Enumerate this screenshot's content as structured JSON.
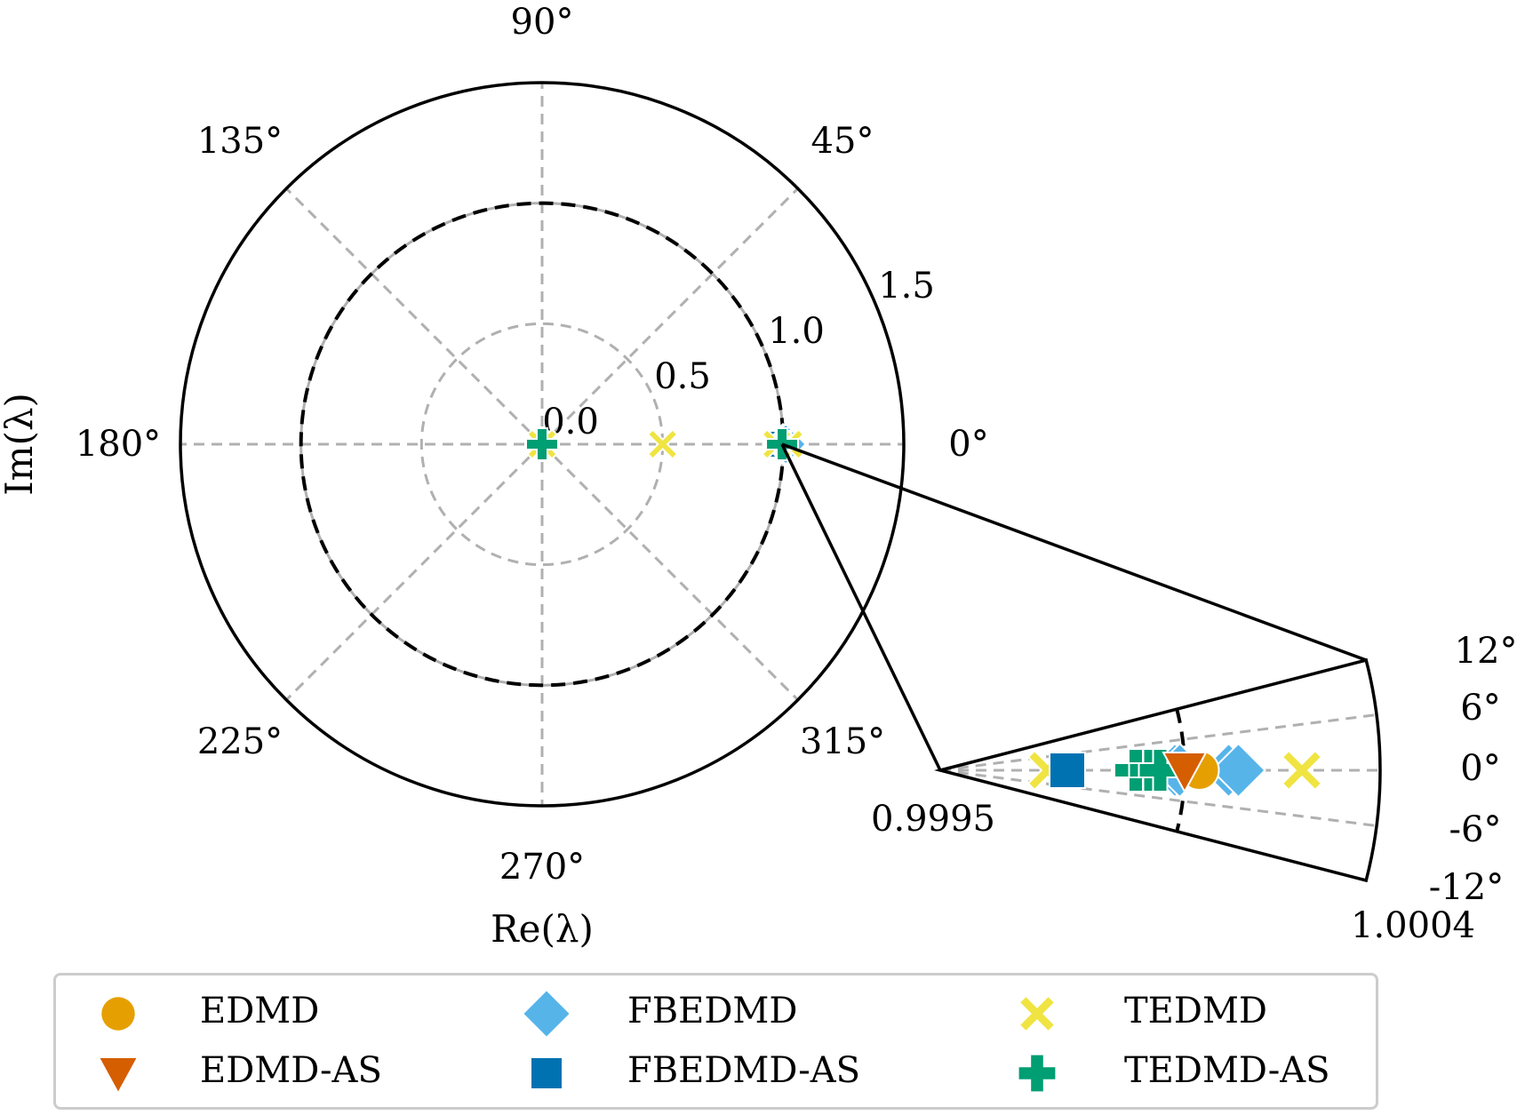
{
  "chart_data": {
    "type": "scatter",
    "subtype": "polar",
    "title": "",
    "xlabel": "Re(λ)",
    "ylabel": "Im(λ)",
    "main_axes": {
      "r_max": 1.5,
      "r_ticks": [
        0.0,
        0.5,
        1.0,
        1.5
      ],
      "r_tick_labels": [
        "0.0",
        "0.5",
        "1.0",
        "1.5"
      ],
      "theta_ticks_deg": [
        0,
        45,
        90,
        135,
        180,
        225,
        270,
        315
      ],
      "theta_tick_labels": [
        "0°",
        "45°",
        "90°",
        "135°",
        "180°",
        "225°",
        "270°",
        "315°"
      ],
      "unit_circle": {
        "r": 1.0,
        "style": "dashed-black"
      },
      "grid": true
    },
    "inset_axes": {
      "r_range": [
        0.9995,
        1.0004
      ],
      "r_tick_labels": [
        "0.9995",
        "1.0004"
      ],
      "theta_range_deg": [
        -12,
        12
      ],
      "theta_ticks_deg": [
        12,
        6,
        0,
        -6,
        -12
      ],
      "theta_tick_labels": [
        "12°",
        "6°",
        "0°",
        "-6°",
        "-12°"
      ],
      "unit_circle": {
        "r": 1.0,
        "style": "dashed-black"
      },
      "grid": true
    },
    "series": [
      {
        "name": "EDMD",
        "marker": "circle",
        "color": "#E69F00",
        "points": [
          {
            "r": 0.0,
            "theta_deg": 0
          },
          {
            "r": 1.00003,
            "theta_deg": 0
          }
        ]
      },
      {
        "name": "EDMD-AS",
        "marker": "triangle-down",
        "color": "#D55E00",
        "points": [
          {
            "r": 1.0,
            "theta_deg": 0
          }
        ]
      },
      {
        "name": "FBEDMD",
        "marker": "diamond",
        "color": "#56B4E9",
        "points": [
          {
            "r": 0.99998,
            "theta_deg": 0
          },
          {
            "r": 0.99999,
            "theta_deg": 0
          },
          {
            "r": 1.00009,
            "theta_deg": 0
          },
          {
            "r": 1.00011,
            "theta_deg": 0
          }
        ]
      },
      {
        "name": "FBEDMD-AS",
        "marker": "square",
        "color": "#0072B2",
        "points": [
          {
            "r": 0.99976,
            "theta_deg": 0
          }
        ]
      },
      {
        "name": "TEDMD",
        "marker": "x",
        "color": "#F0E442",
        "points": [
          {
            "r": 0.0,
            "theta_deg": 0
          },
          {
            "r": 0.5,
            "theta_deg": 0
          },
          {
            "r": 0.99972,
            "theta_deg": 0
          },
          {
            "r": 1.00024,
            "theta_deg": 0
          }
        ]
      },
      {
        "name": "TEDMD-AS",
        "marker": "plus",
        "color": "#009E73",
        "points": [
          {
            "r": 0.0,
            "theta_deg": 0
          },
          {
            "r": 0.9999,
            "theta_deg": 0
          },
          {
            "r": 0.99993,
            "theta_deg": 0
          },
          {
            "r": 0.99995,
            "theta_deg": 0
          }
        ]
      }
    ],
    "legend": {
      "position": "bottom",
      "columns": 3,
      "entries": [
        "EDMD",
        "EDMD-AS",
        "FBEDMD",
        "FBEDMD-AS",
        "TEDMD",
        "TEDMD-AS"
      ]
    }
  },
  "labels": {
    "xlabel": "Re(λ)",
    "ylabel": "Im(λ)"
  },
  "legend": {
    "items": [
      {
        "label": "EDMD",
        "marker": "circle",
        "color": "#E69F00"
      },
      {
        "label": "EDMD-AS",
        "marker": "triangle-down",
        "color": "#D55E00"
      },
      {
        "label": "FBEDMD",
        "marker": "diamond",
        "color": "#56B4E9"
      },
      {
        "label": "FBEDMD-AS",
        "marker": "square",
        "color": "#0072B2"
      },
      {
        "label": "TEDMD",
        "marker": "x",
        "color": "#F0E442"
      },
      {
        "label": "TEDMD-AS",
        "marker": "plus",
        "color": "#009E73"
      }
    ]
  },
  "colors": {
    "grid": "#b0b0b0",
    "axis": "#000000",
    "legend_border": "#cccccc"
  }
}
